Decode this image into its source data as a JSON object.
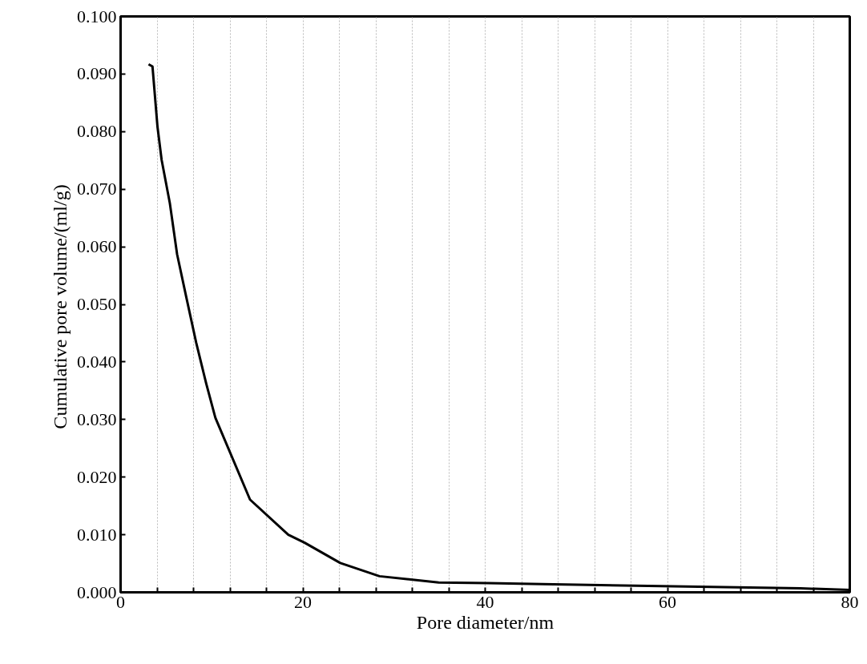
{
  "chart_data": {
    "type": "line",
    "xlabel": "Pore diameter/nm",
    "ylabel": "Cumulative  pore volume/(ml/g)",
    "x": [
      3.07,
      3.5,
      4.05,
      4.5,
      5.4,
      6.2,
      7.2,
      8.3,
      9.4,
      10.4,
      14.2,
      18.4,
      20.2,
      24.1,
      28.4,
      34.9,
      40.3,
      47.5,
      62,
      74.6,
      80
    ],
    "series": [
      {
        "color": "#000000",
        "values": [
          0.0917,
          0.0913,
          0.0808,
          0.0751,
          0.0676,
          0.0587,
          0.0513,
          0.0433,
          0.0362,
          0.0303,
          0.0161,
          0.01,
          0.0086,
          0.0051,
          0.0028,
          0.0017,
          0.0016,
          0.0014,
          0.001,
          0.0007,
          0.0004
        ]
      }
    ],
    "xlim": [
      0,
      80
    ],
    "ylim": [
      0,
      0.1
    ],
    "xticks": [
      0,
      {
        "value": 4,
        "label": null
      },
      {
        "value": 8,
        "label": null
      },
      {
        "value": 12,
        "label": null
      },
      {
        "value": 16,
        "label": null
      },
      20,
      {
        "value": 24,
        "label": null
      },
      {
        "value": 28,
        "label": null
      },
      {
        "value": 32,
        "label": null
      },
      {
        "value": 36,
        "label": null
      },
      40,
      {
        "value": 44,
        "label": null
      },
      {
        "value": 48,
        "label": null
      },
      {
        "value": 52,
        "label": null
      },
      {
        "value": 56,
        "label": null
      },
      60,
      {
        "value": 64,
        "label": null
      },
      {
        "value": 68,
        "label": null
      },
      {
        "value": 72,
        "label": null
      },
      {
        "value": 76,
        "label": null
      },
      80
    ],
    "yticks": [
      {
        "value": 0,
        "label": "0.000"
      },
      {
        "value": 0.01,
        "label": "0.010"
      },
      {
        "value": 0.02,
        "label": "0.020"
      },
      {
        "value": 0.03,
        "label": "0.030"
      },
      {
        "value": 0.04,
        "label": "0.040"
      },
      {
        "value": 0.05,
        "label": "0.050"
      },
      {
        "value": 0.06,
        "label": "0.060"
      },
      {
        "value": 0.07,
        "label": "0.070"
      },
      {
        "value": 0.08,
        "label": "0.080"
      },
      {
        "value": 0.09,
        "label": "0.090"
      },
      {
        "value": 0.1,
        "label": "0.100"
      }
    ],
    "grid": "x",
    "marker": "none",
    "line_style": "solid"
  }
}
